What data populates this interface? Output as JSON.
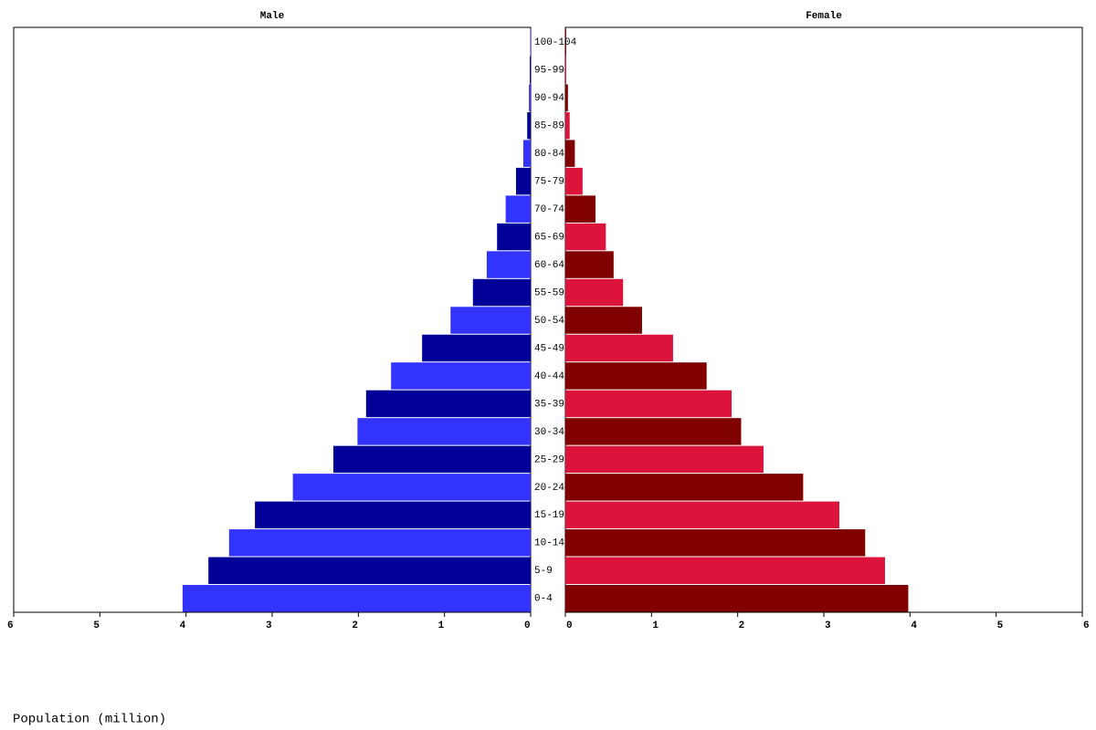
{
  "chart_data": {
    "type": "pyramid",
    "xlabel": "Population (million)",
    "categories": [
      "0-4",
      "5-9",
      "10-14",
      "15-19",
      "20-24",
      "25-29",
      "30-34",
      "35-39",
      "40-44",
      "45-49",
      "50-54",
      "55-59",
      "60-64",
      "65-69",
      "70-74",
      "75-79",
      "80-84",
      "85-89",
      "90-94",
      "95-99",
      "100-104"
    ],
    "series": [
      {
        "name": "Male",
        "colors": [
          "#3333ff",
          "#000099"
        ],
        "values": [
          4.04,
          3.74,
          3.5,
          3.2,
          2.76,
          2.29,
          2.01,
          1.91,
          1.62,
          1.26,
          0.93,
          0.67,
          0.51,
          0.39,
          0.29,
          0.17,
          0.085,
          0.04,
          0.02,
          0.01,
          0.005
        ]
      },
      {
        "name": "Female",
        "colors": [
          "#800000",
          "#dc143c"
        ],
        "values": [
          3.98,
          3.71,
          3.48,
          3.18,
          2.76,
          2.3,
          2.04,
          1.93,
          1.64,
          1.25,
          0.89,
          0.67,
          0.56,
          0.47,
          0.35,
          0.2,
          0.11,
          0.05,
          0.03,
          0.01,
          0.01
        ]
      }
    ],
    "xlim": [
      0,
      6
    ],
    "xticks": [
      0,
      1,
      2,
      3,
      4,
      5,
      6
    ]
  }
}
